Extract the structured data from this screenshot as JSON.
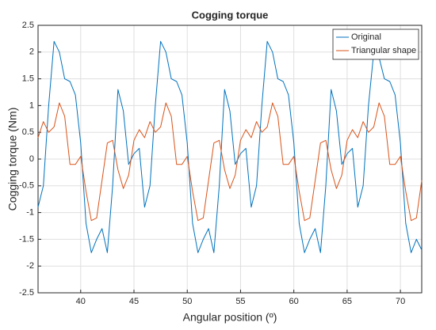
{
  "chart_data": {
    "type": "line",
    "title": "Cogging torque",
    "xlabel": "Angular position (º)",
    "ylabel": "Cogging torque (Nm)",
    "x": [
      36,
      36.5,
      37,
      37.5,
      38,
      38.5,
      39,
      39.5,
      40,
      40.5,
      41,
      41.5,
      42,
      42.5,
      43,
      43.5,
      44,
      44.5,
      45,
      45.5,
      46,
      46.5,
      47,
      47.5,
      48,
      48.5,
      49,
      49.5,
      50,
      50.5,
      51,
      51.5,
      52,
      52.5,
      53,
      53.5,
      54,
      54.5,
      55,
      55.5,
      56,
      56.5,
      57,
      57.5,
      58,
      58.5,
      59,
      59.5,
      60,
      60.5,
      61,
      61.5,
      62,
      62.5,
      63,
      63.5,
      64,
      64.5,
      65,
      65.5,
      66,
      66.5,
      67,
      67.5,
      68,
      68.5,
      69,
      69.5,
      70,
      70.5,
      71,
      71.5,
      72
    ],
    "series": [
      {
        "name": "Original",
        "color": "#0072bd",
        "values": [
          -0.9,
          -0.5,
          1.0,
          2.2,
          2.0,
          1.5,
          1.45,
          1.2,
          0.3,
          -1.2,
          -1.75,
          -1.5,
          -1.3,
          -1.75,
          -0.5,
          1.3,
          0.9,
          -0.1,
          0.1,
          0.2,
          -0.9,
          -0.5,
          1.0,
          2.2,
          2.0,
          1.5,
          1.45,
          1.2,
          0.3,
          -1.2,
          -1.75,
          -1.5,
          -1.3,
          -1.75,
          -0.5,
          1.3,
          0.9,
          -0.1,
          0.1,
          0.2,
          -0.9,
          -0.5,
          1.0,
          2.2,
          2.0,
          1.5,
          1.45,
          1.2,
          0.3,
          -1.2,
          -1.75,
          -1.5,
          -1.3,
          -1.75,
          -0.5,
          1.3,
          0.9,
          -0.1,
          0.1,
          0.2,
          -0.9,
          -0.5,
          1.0,
          2.0,
          1.9,
          1.5,
          1.45,
          1.2,
          0.3,
          -1.2,
          -1.75,
          -1.5,
          -1.7
        ]
      },
      {
        "name": "Triangular shape",
        "color": "#d95319",
        "values": [
          0.4,
          0.7,
          0.5,
          0.6,
          1.05,
          0.8,
          -0.1,
          -0.1,
          0.05,
          -0.6,
          -1.15,
          -1.1,
          -0.4,
          0.3,
          0.35,
          -0.2,
          -0.55,
          -0.3,
          0.35,
          0.55,
          0.4,
          0.7,
          0.5,
          0.6,
          1.05,
          0.8,
          -0.1,
          -0.1,
          0.05,
          -0.6,
          -1.15,
          -1.1,
          -0.4,
          0.3,
          0.35,
          -0.2,
          -0.55,
          -0.3,
          0.35,
          0.55,
          0.4,
          0.7,
          0.5,
          0.6,
          1.05,
          0.8,
          -0.1,
          -0.1,
          0.05,
          -0.6,
          -1.15,
          -1.1,
          -0.4,
          0.3,
          0.35,
          -0.2,
          -0.55,
          -0.3,
          0.35,
          0.55,
          0.4,
          0.7,
          0.5,
          0.6,
          1.05,
          0.8,
          -0.1,
          -0.1,
          0.05,
          -0.6,
          -1.15,
          -1.1,
          -0.4
        ]
      }
    ],
    "xlim": [
      36,
      72
    ],
    "xticks": [
      40,
      45,
      50,
      55,
      60,
      65,
      70
    ],
    "ylim": [
      -2.5,
      2.5
    ],
    "yticks": [
      -2.5,
      -2,
      -1.5,
      -1,
      -0.5,
      0,
      0.5,
      1,
      1.5,
      2,
      2.5
    ],
    "grid": true,
    "legend": "northeast"
  }
}
